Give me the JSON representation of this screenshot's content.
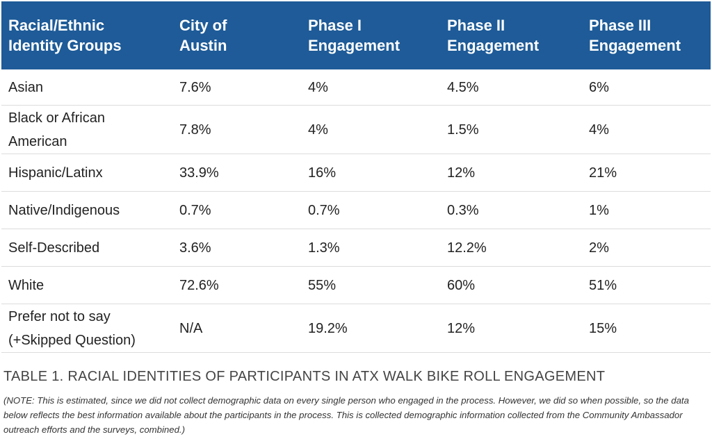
{
  "table": {
    "header": [
      "Racial/Ethnic Identity Groups",
      "City of Austin",
      "Phase I Engagement",
      "Phase II Engagement",
      "Phase III Engagement"
    ],
    "rows": [
      [
        "Asian",
        "7.6%",
        "4%",
        "4.5%",
        "6%"
      ],
      [
        "Black or African American",
        "7.8%",
        "4%",
        "1.5%",
        "4%"
      ],
      [
        "Hispanic/Latinx",
        "33.9%",
        "16%",
        "12%",
        "21%"
      ],
      [
        "Native/Indigenous",
        "0.7%",
        "0.7%",
        "0.3%",
        "1%"
      ],
      [
        "Self-Described",
        "3.6%",
        "1.3%",
        "12.2%",
        "2%"
      ],
      [
        "White",
        "72.6%",
        "55%",
        "60%",
        "51%"
      ],
      [
        "Prefer not to say (+Skipped Question)",
        "N/A",
        "19.2%",
        "12%",
        "15%"
      ]
    ]
  },
  "caption": "TABLE 1.  RACIAL IDENTITIES OF PARTICIPANTS IN ATX WALK BIKE ROLL ENGAGEMENT",
  "note": "(NOTE: This is estimated, since we did not collect demographic data on every single person who engaged in the process. However, we did so when possible, so the data below reflects the best information available about the participants in the process. This is collected demographic information collected from the Community Ambassador outreach efforts and the surveys, combined.)"
}
